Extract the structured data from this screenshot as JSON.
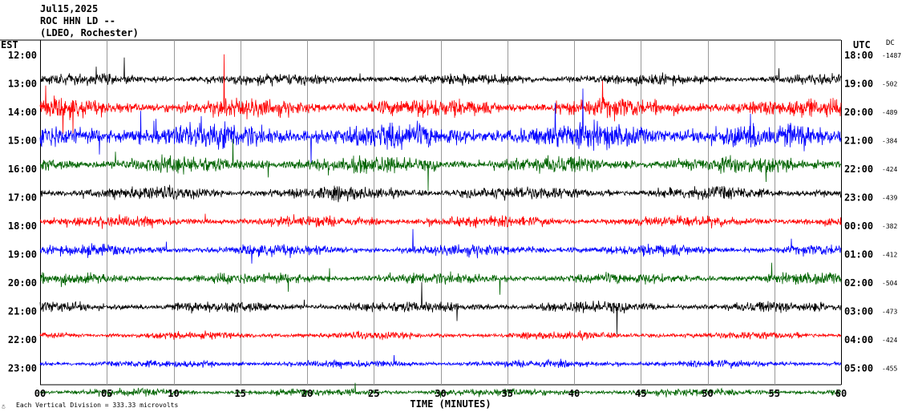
{
  "header": {
    "date": "Jul15,2025",
    "station": "ROC HHN LD --",
    "network": "(LDEO, Rochester)"
  },
  "labels": {
    "left_zone": "EST",
    "right_zone": "UTC",
    "dc": "DC",
    "xlabel": "TIME (MINUTES)",
    "scale_note": "Each Vertical Division =  333.33 microvolts",
    "corner_mark": "☃"
  },
  "chart_data": {
    "type": "line",
    "title": "",
    "xlabel": "TIME (MINUTES)",
    "x_ticks": [
      "00",
      "05",
      "10",
      "15",
      "20",
      "25",
      "30",
      "35",
      "40",
      "45",
      "50",
      "55",
      "60"
    ],
    "xlim": [
      0,
      60
    ],
    "grid": true,
    "colors": [
      "#000000",
      "#ff0000",
      "#0000ff",
      "#006400"
    ],
    "rows": [
      {
        "est": "12:00",
        "utc": "18:00",
        "dc": "-1487",
        "color": "#000000",
        "amp": 6,
        "burst": 0.9
      },
      {
        "est": "13:00",
        "utc": "19:00",
        "dc": "-502",
        "color": "#ff0000",
        "amp": 10,
        "burst": 1.0
      },
      {
        "est": "14:00",
        "utc": "20:00",
        "dc": "-489",
        "color": "#0000ff",
        "amp": 14,
        "burst": 1.0
      },
      {
        "est": "15:00",
        "utc": "21:00",
        "dc": "-384",
        "color": "#006400",
        "amp": 9,
        "burst": 0.7
      },
      {
        "est": "16:00",
        "utc": "22:00",
        "dc": "-424",
        "color": "#000000",
        "amp": 7,
        "burst": 0.6
      },
      {
        "est": "17:00",
        "utc": "23:00",
        "dc": "-439",
        "color": "#ff0000",
        "amp": 6,
        "burst": 0.5
      },
      {
        "est": "18:00",
        "utc": "00:00",
        "dc": "-382",
        "color": "#0000ff",
        "amp": 6,
        "burst": 0.5
      },
      {
        "est": "19:00",
        "utc": "01:00",
        "dc": "-412",
        "color": "#006400",
        "amp": 6,
        "burst": 0.6
      },
      {
        "est": "20:00",
        "utc": "02:00",
        "dc": "-504",
        "color": "#000000",
        "amp": 6,
        "burst": 0.5
      },
      {
        "est": "21:00",
        "utc": "03:00",
        "dc": "-473",
        "color": "#ff0000",
        "amp": 4,
        "burst": 0.4
      },
      {
        "est": "22:00",
        "utc": "04:00",
        "dc": "-424",
        "color": "#0000ff",
        "amp": 4,
        "burst": 0.3
      },
      {
        "est": "23:00",
        "utc": "05:00",
        "dc": "-455",
        "color": "#006400",
        "amp": 4,
        "burst": 0.3
      }
    ]
  }
}
